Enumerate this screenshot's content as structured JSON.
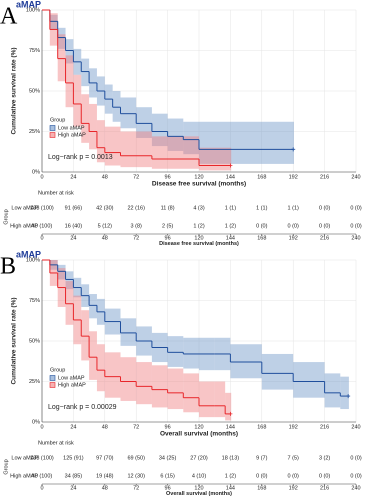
{
  "chart_data": [
    {
      "type": "step",
      "panel_label": "A",
      "title": "aMAP",
      "xlabel": "Disease free survival (months)",
      "ylabel": "Cumulative survival rate (%)",
      "annotation": "Log−rank  p = 0.0013",
      "legend_title": "Group",
      "grid": true,
      "xlim": [
        0,
        240
      ],
      "xticks": [
        0,
        24,
        48,
        72,
        96,
        120,
        144,
        168,
        192,
        216,
        240
      ],
      "ylim": [
        0,
        100
      ],
      "yticks": [
        {
          "value": 0,
          "label": "0%"
        },
        {
          "value": 25,
          "label": "25%"
        },
        {
          "value": 50,
          "label": "50%"
        },
        {
          "value": 75,
          "label": "75%"
        },
        {
          "value": 100,
          "label": "100%"
        }
      ],
      "series": [
        {
          "name": "Low aMAP",
          "color": "#1f4e9c",
          "band_color": "#6f96c8",
          "x": [
            0,
            6,
            12,
            18,
            24,
            30,
            36,
            42,
            48,
            54,
            60,
            72,
            84,
            96,
            108,
            120,
            192
          ],
          "values": [
            100,
            93,
            83,
            75,
            68,
            62,
            55,
            50,
            45,
            40,
            36,
            30,
            25,
            22,
            20,
            14,
            14
          ],
          "ci_upper": [
            100,
            97,
            89,
            82,
            76,
            70,
            64,
            59,
            54,
            50,
            46,
            40,
            36,
            33,
            31,
            31,
            31
          ],
          "ci_lower": [
            100,
            88,
            76,
            67,
            60,
            53,
            46,
            41,
            36,
            31,
            27,
            21,
            16,
            13,
            11,
            5,
            5
          ]
        },
        {
          "name": "High aMAP",
          "color": "#e8262a",
          "band_color": "#f07f80",
          "x": [
            0,
            6,
            12,
            18,
            24,
            30,
            36,
            42,
            48,
            60,
            84,
            120,
            144
          ],
          "values": [
            100,
            88,
            70,
            55,
            42,
            30,
            25,
            15,
            12,
            10,
            8,
            4,
            4
          ],
          "ci_upper": [
            100,
            98,
            85,
            72,
            60,
            48,
            42,
            32,
            28,
            25,
            22,
            15,
            15
          ],
          "ci_lower": [
            100,
            78,
            56,
            40,
            28,
            18,
            14,
            6,
            4,
            3,
            2,
            1,
            1
          ]
        }
      ],
      "risk_table": {
        "title": "Number at risk",
        "group_label": "Group",
        "xlabel": "Disease free survival (months)",
        "xticks": [
          0,
          24,
          48,
          72,
          96,
          120,
          144,
          168,
          192,
          216,
          240
        ],
        "rows": [
          {
            "name": "Low aMAP",
            "cells": [
              "138 (100)",
              "91 (66)",
              "42 (30)",
              "22 (16)",
              "11 (8)",
              "4 (3)",
              "1 (1)",
              "1 (1)",
              "1 (1)",
              "0 (0)",
              "0 (0)"
            ]
          },
          {
            "name": "High aMAP",
            "cells": [
              "40 (100)",
              "16 (40)",
              "5 (12)",
              "3 (8)",
              "2 (5)",
              "1 (2)",
              "1 (2)",
              "0 (0)",
              "0 (0)",
              "0 (0)",
              "0 (0)"
            ]
          }
        ]
      }
    },
    {
      "type": "step",
      "panel_label": "B",
      "title": "aMAP",
      "xlabel": "Overall survival (months)",
      "ylabel": "Cumulative survival rate (%)",
      "annotation": "Log−rank  p = 0.00029",
      "legend_title": "Group",
      "grid": true,
      "xlim": [
        0,
        240
      ],
      "xticks": [
        0,
        24,
        48,
        72,
        96,
        120,
        144,
        168,
        192,
        216,
        240
      ],
      "ylim": [
        0,
        100
      ],
      "yticks": [
        {
          "value": 0,
          "label": "0%"
        },
        {
          "value": 25,
          "label": "25%"
        },
        {
          "value": 50,
          "label": "50%"
        },
        {
          "value": 75,
          "label": "75%"
        },
        {
          "value": 100,
          "label": "100%"
        }
      ],
      "series": [
        {
          "name": "Low aMAP",
          "color": "#1f4e9c",
          "band_color": "#6f96c8",
          "x": [
            0,
            6,
            12,
            18,
            24,
            30,
            36,
            42,
            48,
            60,
            72,
            84,
            96,
            108,
            120,
            132,
            144,
            168,
            192,
            216,
            228,
            234
          ],
          "values": [
            100,
            97,
            93,
            88,
            83,
            78,
            72,
            68,
            62,
            55,
            50,
            46,
            43,
            42,
            42,
            42,
            37,
            30,
            25,
            18,
            16,
            16
          ],
          "ci_upper": [
            100,
            100,
            97,
            93,
            89,
            85,
            79,
            76,
            70,
            64,
            59,
            55,
            53,
            52,
            52,
            52,
            48,
            42,
            37,
            30,
            28,
            28
          ],
          "ci_lower": [
            100,
            94,
            88,
            82,
            77,
            71,
            64,
            60,
            54,
            47,
            41,
            37,
            34,
            33,
            32,
            32,
            27,
            20,
            15,
            9,
            8,
            8
          ]
        },
        {
          "name": "High aMAP",
          "color": "#e8262a",
          "band_color": "#f07f80",
          "x": [
            0,
            6,
            12,
            18,
            24,
            30,
            36,
            42,
            48,
            60,
            72,
            84,
            96,
            108,
            120,
            132,
            140,
            144
          ],
          "values": [
            100,
            92,
            83,
            73,
            63,
            53,
            40,
            32,
            28,
            25,
            22,
            20,
            18,
            15,
            10,
            10,
            5,
            5
          ],
          "ci_upper": [
            100,
            100,
            95,
            87,
            78,
            69,
            56,
            48,
            43,
            40,
            37,
            35,
            33,
            30,
            25,
            25,
            18,
            18
          ],
          "ci_lower": [
            100,
            84,
            71,
            60,
            48,
            38,
            26,
            19,
            15,
            13,
            11,
            9,
            8,
            6,
            3,
            3,
            1,
            1
          ]
        }
      ],
      "risk_table": {
        "title": "Number at risk",
        "group_label": "Group",
        "xlabel": "Overall survival (months)",
        "xticks": [
          0,
          24,
          48,
          72,
          96,
          120,
          144,
          168,
          192,
          216,
          240
        ],
        "rows": [
          {
            "name": "Low aMAP",
            "cells": [
              "138 (100)",
              "125 (91)",
              "97 (70)",
              "69 (50)",
              "34 (25)",
              "27 (20)",
              "18 (13)",
              "9 (7)",
              "7 (5)",
              "3 (2)",
              "0 (0)"
            ]
          },
          {
            "name": "High aMAP",
            "cells": [
              "40 (100)",
              "34 (85)",
              "19 (48)",
              "12 (30)",
              "6 (15)",
              "4 (10)",
              "1 (2)",
              "0 (0)",
              "0 (0)",
              "0 (0)",
              "0 (0)"
            ]
          }
        ]
      }
    }
  ]
}
